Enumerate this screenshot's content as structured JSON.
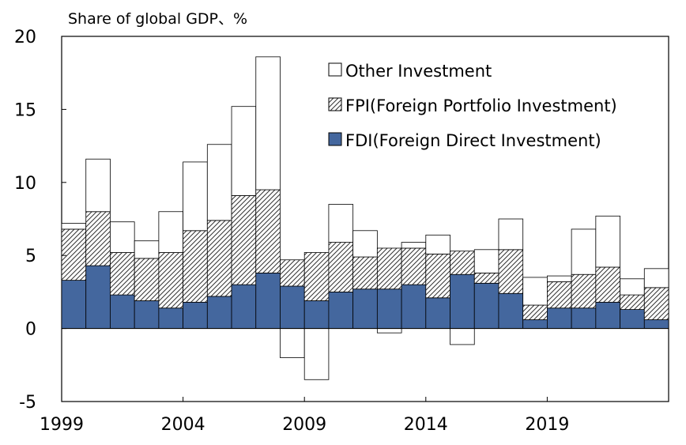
{
  "chart_data": {
    "type": "bar",
    "stacked": true,
    "title": "",
    "ylabel": "Share of global GDP、%",
    "xlabel": "",
    "ylim": [
      -5,
      20
    ],
    "yticks": [
      -5,
      0,
      5,
      10,
      15,
      20
    ],
    "xtick_labels": [
      "1999",
      "2004",
      "2009",
      "2014",
      "2019"
    ],
    "categories": [
      "1999",
      "2000",
      "2001",
      "2002",
      "2003",
      "2004",
      "2005",
      "2006",
      "2007",
      "2008",
      "2009",
      "2010",
      "2011",
      "2012",
      "2013",
      "2014",
      "2015",
      "2016",
      "2017",
      "2018",
      "2019",
      "2020",
      "2021",
      "2022",
      "2023"
    ],
    "legend_position": "top-right",
    "series": [
      {
        "name": "FDI(Foreign Direct Investment)",
        "key": "fdi",
        "color": "#44679e",
        "values": [
          3.3,
          4.3,
          2.3,
          1.9,
          1.4,
          1.8,
          2.2,
          3.0,
          3.8,
          2.9,
          1.9,
          2.5,
          2.7,
          2.7,
          3.0,
          2.1,
          3.7,
          3.1,
          2.4,
          0.6,
          1.4,
          1.4,
          1.8,
          1.3,
          0.6
        ]
      },
      {
        "name": "FPI(Foreign Portfolio Investment)",
        "key": "fpi",
        "color": "#ffffff",
        "values": [
          3.5,
          3.7,
          2.9,
          2.9,
          3.8,
          4.9,
          5.2,
          6.1,
          5.7,
          1.8,
          3.3,
          3.4,
          2.2,
          2.8,
          2.5,
          3.0,
          1.6,
          0.7,
          3.0,
          1.0,
          1.8,
          2.3,
          2.4,
          1.0,
          2.2
        ]
      },
      {
        "name": "Other Investment",
        "key": "other",
        "color": "#ffffff",
        "values": [
          0.4,
          3.6,
          2.1,
          1.2,
          2.8,
          4.7,
          5.2,
          6.1,
          9.1,
          -2.0,
          -3.5,
          2.6,
          1.8,
          -0.3,
          0.4,
          1.3,
          -1.1,
          1.6,
          2.1,
          1.9,
          0.4,
          3.1,
          3.5,
          1.1,
          1.3
        ]
      }
    ]
  }
}
